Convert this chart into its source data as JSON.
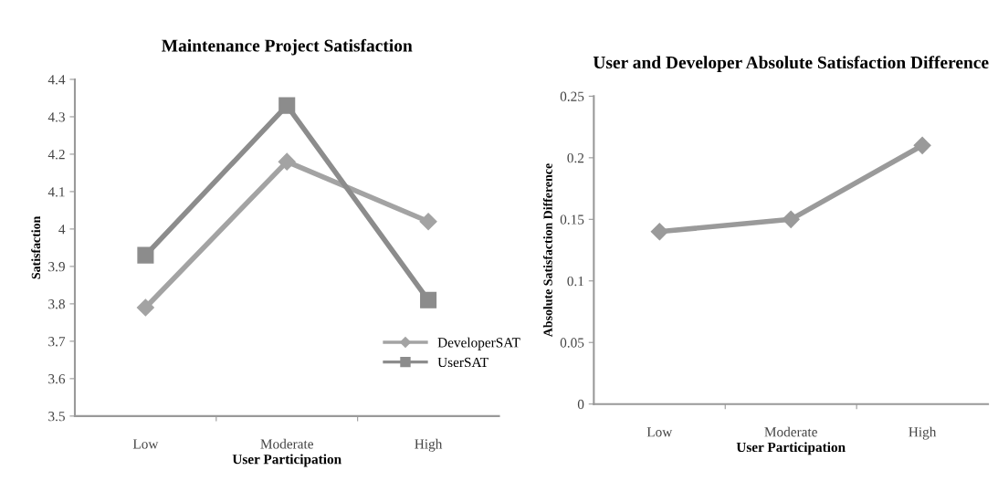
{
  "chart_data": [
    {
      "type": "line",
      "title": "Maintenance Project Satisfaction",
      "xlabel": "User Participation",
      "ylabel": "Satisfaction",
      "categories": [
        "Low",
        "Moderate",
        "High"
      ],
      "series": [
        {
          "name": "DeveloperSAT",
          "color": "#a3a3a3",
          "marker": "diamond",
          "values": [
            3.79,
            4.18,
            4.02
          ]
        },
        {
          "name": "UserSAT",
          "color": "#8c8c8c",
          "marker": "square",
          "values": [
            3.93,
            4.33,
            3.81
          ]
        }
      ],
      "ylim": [
        3.5,
        4.4
      ],
      "yticks": [
        3.5,
        3.6,
        3.7,
        3.8,
        3.9,
        4,
        4.1,
        4.2,
        4.3,
        4.4
      ],
      "grid": false,
      "legend": "bottom right"
    },
    {
      "type": "line",
      "title": "User and Developer Absolute Satisfaction Difference",
      "xlabel": "User Participation",
      "ylabel": "Absolute Satisfaction Difference",
      "categories": [
        "Low",
        "Moderate",
        "High"
      ],
      "series": [
        {
          "color": "#9a9a9a",
          "marker": "diamond",
          "values": [
            0.14,
            0.15,
            0.21
          ]
        }
      ],
      "ylim": [
        0,
        0.25
      ],
      "yticks": [
        0,
        0.05,
        0.1,
        0.15,
        0.2,
        0.25
      ],
      "grid": false,
      "legend": false
    }
  ]
}
